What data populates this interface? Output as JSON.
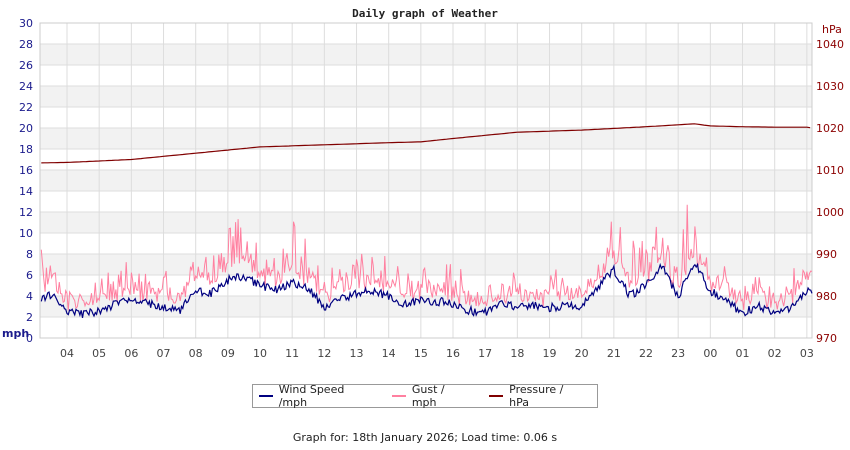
{
  "chart_data": {
    "type": "line",
    "title": "Daily graph of Weather",
    "ylabel_left": "mph",
    "ylabel_right": "hPa",
    "ylim_left": [
      0,
      30
    ],
    "ylim_right": [
      970,
      1045
    ],
    "yticks_left": [
      0,
      2,
      4,
      6,
      8,
      10,
      12,
      14,
      16,
      18,
      20,
      22,
      24,
      26,
      28,
      30
    ],
    "yticks_right": [
      970,
      980,
      990,
      1000,
      1010,
      1020,
      1030,
      1040
    ],
    "xlim_hours": [
      3.16,
      27.16
    ],
    "xtick_labels": [
      "04",
      "05",
      "06",
      "07",
      "08",
      "09",
      "10",
      "11",
      "12",
      "13",
      "14",
      "15",
      "16",
      "17",
      "18",
      "19",
      "20",
      "21",
      "22",
      "23",
      "00",
      "01",
      "02",
      "03"
    ],
    "grid": true,
    "legend_position": "bottom",
    "series": [
      {
        "name": "Wind Speed /mph",
        "color": "#000080",
        "axis": "left",
        "x": [
          3.2,
          3.5,
          4,
          4.5,
          5,
          5.5,
          6,
          6.5,
          7,
          7.5,
          8,
          8.5,
          9,
          9.5,
          10,
          10.5,
          11,
          11.5,
          12,
          12.5,
          13,
          13.5,
          14,
          14.5,
          15,
          15.5,
          16,
          16.5,
          17,
          17.5,
          18,
          18.5,
          19,
          19.5,
          20,
          20.5,
          21,
          21.5,
          22,
          22.5,
          23,
          23.3,
          23.5,
          24,
          24.5,
          25,
          25.5,
          26,
          26.5,
          27,
          27.16
        ],
        "values": [
          3.5,
          4.2,
          2.6,
          2.2,
          2.6,
          3.2,
          3.6,
          3.3,
          3.0,
          2.6,
          4.5,
          4.3,
          5.5,
          5.9,
          5.0,
          4.6,
          5.2,
          4.7,
          3.0,
          3.8,
          4.2,
          4.5,
          4.0,
          3.2,
          3.6,
          3.5,
          3.3,
          2.6,
          2.4,
          3.2,
          3.0,
          3.1,
          2.9,
          3.1,
          3.0,
          4.8,
          6.5,
          4.0,
          5.0,
          6.8,
          3.8,
          6.0,
          7.2,
          4.5,
          3.5,
          2.4,
          3.0,
          2.2,
          2.9,
          4.6,
          4.5
        ]
      },
      {
        "name": "Gust / mph",
        "color": "#ff80a0",
        "axis": "left",
        "x": [
          3.2,
          3.5,
          4,
          4.5,
          5,
          5.5,
          6,
          6.5,
          7,
          7.5,
          8,
          8.5,
          9,
          9.5,
          10,
          10.5,
          11,
          11.5,
          12,
          12.5,
          13,
          13.5,
          14,
          14.5,
          15,
          15.5,
          16,
          16.5,
          17,
          17.5,
          18,
          18.5,
          19,
          19.5,
          20,
          20.5,
          21,
          21.5,
          22,
          22.5,
          23,
          23.3,
          23.5,
          24,
          24.5,
          25,
          25.5,
          26,
          26.5,
          27,
          27.16
        ],
        "values": [
          9,
          7,
          5,
          4,
          6,
          7,
          8,
          6,
          7,
          5,
          9,
          8,
          11,
          12,
          9,
          8,
          12,
          9,
          6,
          8,
          8,
          9,
          8,
          6,
          7,
          6,
          8,
          5,
          4.5,
          7,
          6,
          6,
          7,
          6,
          6,
          8,
          12,
          9,
          12,
          10,
          8,
          13.5,
          12,
          8,
          7,
          5,
          6,
          5,
          7,
          9,
          8
        ]
      },
      {
        "name": "Pressure / hPa",
        "color": "#800000",
        "axis": "right",
        "x": [
          3.2,
          4,
          6,
          8,
          10,
          12,
          14,
          15,
          16,
          18,
          20,
          22,
          23.5,
          24,
          25,
          26,
          27,
          27.16
        ],
        "values": [
          1011.7,
          1011.8,
          1012.5,
          1014,
          1015.5,
          1016,
          1016.5,
          1016.7,
          1017.5,
          1019,
          1019.5,
          1020.3,
          1021,
          1020.5,
          1020.3,
          1020.2,
          1020.2,
          1020
        ]
      }
    ]
  },
  "footer": "Graph for: 18th January 2026; Load time: 0.06 s"
}
